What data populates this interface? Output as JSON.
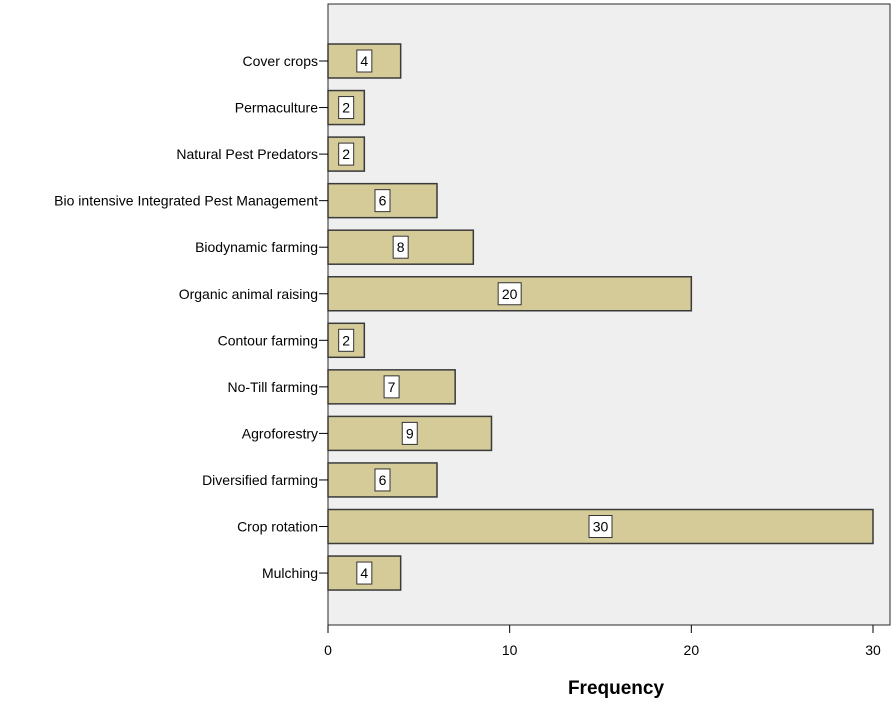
{
  "chart_data": {
    "type": "bar",
    "orientation": "horizontal",
    "categories": [
      "Cover crops",
      "Permaculture",
      "Natural Pest Predators",
      "Bio intensive Integrated Pest Management",
      "Biodynamic farming",
      "Organic animal raising",
      "Contour farming",
      "No-Till farming",
      "Agroforestry",
      "Diversified farming",
      "Crop rotation",
      "Mulching"
    ],
    "values": [
      4,
      2,
      2,
      6,
      8,
      20,
      2,
      7,
      9,
      6,
      30,
      4
    ],
    "data_labels": [
      "4",
      "2",
      "2",
      "6",
      "8",
      "20",
      "2",
      "7",
      "9",
      "6",
      "30",
      "4"
    ],
    "xlabel": "Frequency",
    "ylabel": "",
    "xlim": [
      0,
      30
    ],
    "x_ticks": [
      "0",
      "10",
      "20",
      "30"
    ],
    "grid": false,
    "colors": {
      "bar_fill": "#d5cb99",
      "bar_stroke": "#3a3a3a",
      "plot_background": "#efefef",
      "label_box": "#ffffff"
    }
  }
}
